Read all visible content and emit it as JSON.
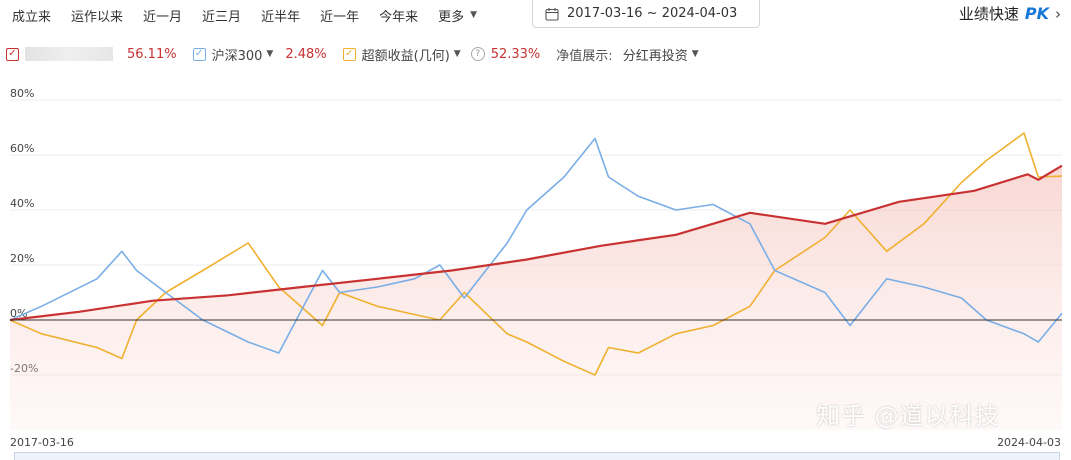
{
  "range_tabs": [
    "成立来",
    "运作以来",
    "近一月",
    "近三月",
    "近半年",
    "近一年",
    "今年来",
    "更多"
  ],
  "date_range": "2017-03-16 ~ 2024-04-03",
  "pk": {
    "label": "业绩快速",
    "word": "PK"
  },
  "legend": {
    "fund": {
      "value": "56.11%",
      "color": "#c83232"
    },
    "index": {
      "name": "沪深300",
      "value": "2.48%",
      "color": "#7aaee6"
    },
    "excess": {
      "name": "超额收益(几何)",
      "help": "?",
      "value": "52.33%",
      "color": "#f0b030"
    },
    "nav_label": "净值展示:",
    "nav_mode": "分红再投资"
  },
  "watermark": "知乎 @道以科技",
  "chart_data": {
    "type": "line",
    "x_range": [
      "2017-03-16",
      "2024-04-03"
    ],
    "ylim": [
      -40,
      80
    ],
    "yticks": [
      "80%",
      "60%",
      "40%",
      "20%",
      "0%",
      "-20%"
    ],
    "grid": true,
    "series": [
      {
        "color": "#c83232",
        "x": [
          "2017-03-16",
          "2017-09-01",
          "2018-03-01",
          "2018-09-01",
          "2019-03-01",
          "2019-09-01",
          "2020-03-01",
          "2020-09-01",
          "2021-03-01",
          "2021-09-01",
          "2022-03-01",
          "2022-09-01",
          "2023-03-01",
          "2023-09-01",
          "2024-01-10",
          "2024-02-05",
          "2024-04-03"
        ],
        "values": [
          0,
          3,
          7,
          9,
          12,
          15,
          18,
          22,
          27,
          31,
          39,
          35,
          43,
          47,
          53,
          51,
          56.11
        ]
      },
      {
        "color": "#7aaee6",
        "x": [
          "2017-03-16",
          "2017-06-01",
          "2017-10-15",
          "2017-12-15",
          "2018-01-20",
          "2018-04-01",
          "2018-07-01",
          "2018-10-20",
          "2019-01-03",
          "2019-04-20",
          "2019-06-01",
          "2019-09-01",
          "2019-12-01",
          "2020-02-01",
          "2020-04-01",
          "2020-07-15",
          "2020-09-01",
          "2020-12-01",
          "2021-02-15",
          "2021-03-20",
          "2021-06-01",
          "2021-09-01",
          "2021-12-01",
          "2022-03-01",
          "2022-05-01",
          "2022-09-01",
          "2022-11-01",
          "2023-01-30",
          "2023-05-01",
          "2023-08-01",
          "2023-10-01",
          "2024-01-01",
          "2024-02-05",
          "2024-04-03"
        ],
        "values": [
          0,
          5,
          15,
          25,
          18,
          10,
          0,
          -8,
          -12,
          18,
          10,
          12,
          15,
          20,
          8,
          28,
          40,
          52,
          66,
          52,
          45,
          40,
          42,
          35,
          18,
          10,
          -2,
          15,
          12,
          8,
          0,
          -5,
          -8,
          2.48
        ]
      },
      {
        "color": "#f0b030",
        "x": [
          "2017-03-16",
          "2017-06-01",
          "2017-10-15",
          "2017-12-15",
          "2018-01-20",
          "2018-04-01",
          "2018-07-01",
          "2018-10-20",
          "2019-01-03",
          "2019-04-20",
          "2019-06-01",
          "2019-09-01",
          "2019-12-01",
          "2020-02-01",
          "2020-04-01",
          "2020-07-15",
          "2020-09-01",
          "2020-12-01",
          "2021-02-15",
          "2021-03-20",
          "2021-06-01",
          "2021-09-01",
          "2021-12-01",
          "2022-03-01",
          "2022-05-01",
          "2022-09-01",
          "2022-11-01",
          "2023-01-30",
          "2023-05-01",
          "2023-08-01",
          "2023-10-01",
          "2024-01-01",
          "2024-02-05",
          "2024-04-03"
        ],
        "values": [
          0,
          -5,
          -10,
          -14,
          0,
          10,
          18,
          28,
          12,
          -2,
          10,
          5,
          2,
          0,
          10,
          -5,
          -8,
          -15,
          -20,
          -10,
          -12,
          -5,
          -2,
          5,
          18,
          30,
          40,
          25,
          35,
          50,
          58,
          68,
          52,
          52.33
        ]
      }
    ]
  }
}
